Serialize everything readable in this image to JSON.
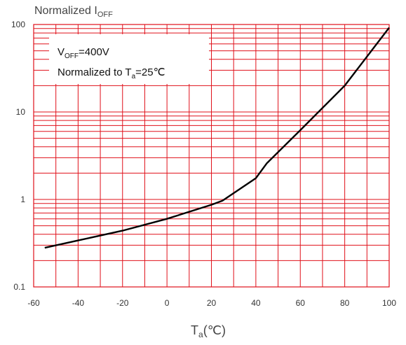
{
  "chart_data": {
    "type": "line",
    "ylabel": {
      "main": "Normalized I",
      "sub": "OFF"
    },
    "xlabel": {
      "main": "T",
      "sub": "a",
      "suffix": "(℃)"
    },
    "x_ticks": [
      "-60",
      "-40",
      "-20",
      "0",
      "20",
      "40",
      "60",
      "80",
      "100"
    ],
    "y_ticks": [
      "0.1",
      "1",
      "10",
      "100"
    ],
    "xlim": [
      -60,
      100
    ],
    "ylim": [
      0.1,
      100
    ],
    "y_scale": "log",
    "grid": true,
    "grid_color": "#e0101a",
    "line_color": "#000000",
    "annotations": {
      "line1": {
        "main": "V",
        "sub": "OFF",
        "suffix": "=400V"
      },
      "line2": {
        "main": "Normalized to T",
        "sub": "a",
        "suffix": "=25℃"
      }
    },
    "x": [
      -55,
      -40,
      -20,
      0,
      20,
      25,
      40,
      45,
      60,
      80,
      100
    ],
    "y": [
      0.28,
      0.34,
      0.44,
      0.6,
      0.87,
      0.97,
      1.75,
      2.6,
      6.2,
      20.0,
      92.0
    ]
  }
}
